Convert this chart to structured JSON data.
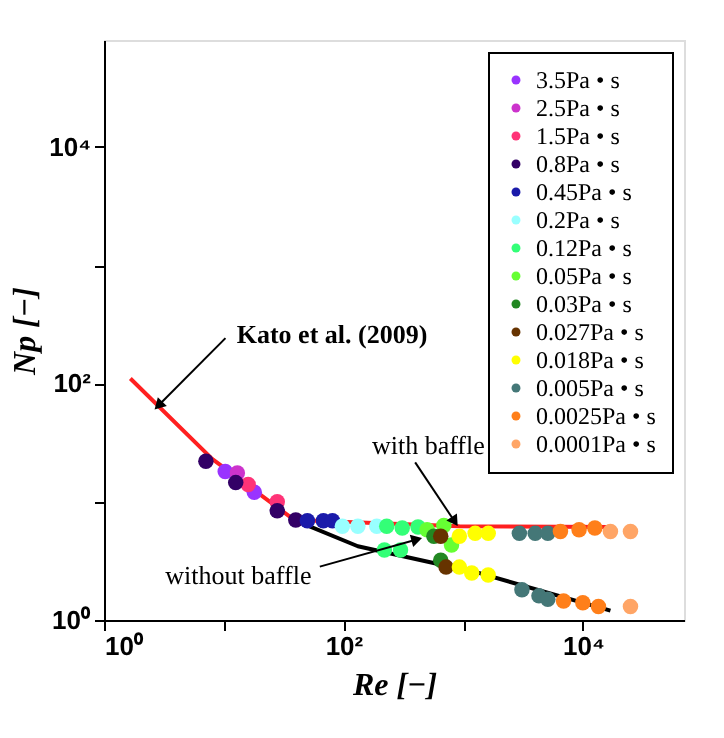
{
  "chart_data": {
    "type": "scatter",
    "xlabel": "Re [−]",
    "ylabel": "Np [−]",
    "log": "xy",
    "grid": false,
    "legend": "top right",
    "marker": "circle",
    "xlim": [
      1,
      70000
    ],
    "ylim": [
      1,
      80000
    ],
    "xticks": [
      {
        "value": 1,
        "label": "10⁰"
      },
      {
        "value": 10,
        "label": null
      },
      {
        "value": 100,
        "label": "10²"
      },
      {
        "value": 1000,
        "label": null
      },
      {
        "value": 10000,
        "label": "10⁴"
      }
    ],
    "yticks": [
      {
        "value": 1,
        "label": "10⁰"
      },
      {
        "value": 10,
        "label": null
      },
      {
        "value": 100,
        "label": "10²"
      },
      {
        "value": 1000,
        "label": null
      },
      {
        "value": 10000,
        "label": "10⁴"
      }
    ],
    "series": [
      {
        "type": "line",
        "marker": "none",
        "color": "#ff2020",
        "x": [
          1.66,
          8,
          39,
          930,
          17000
        ],
        "values": [
          110,
          23,
          7,
          6.2,
          6.1
        ]
      },
      {
        "type": "line",
        "marker": "none",
        "color": "#000000",
        "x": [
          39,
          132,
          1350,
          17000
        ],
        "values": [
          7,
          4.2,
          2.5,
          1.2
        ]
      },
      {
        "name": "3.5Pa • s",
        "color": "#9933ff",
        "x": [
          10.3,
          18
        ],
        "values": [
          18,
          12
        ]
      },
      {
        "name": "2.5Pa • s",
        "color": "#cc33cc",
        "x": [
          13
        ],
        "values": [
          17.5
        ]
      },
      {
        "name": "1.5Pa • s",
        "color": "#ff3377",
        "x": [
          16,
          28
        ],
        "values": [
          14,
          10
        ]
      },
      {
        "name": "0.8Pa • s",
        "color": "#330066",
        "x": [
          7.1,
          12.6,
          28,
          40
        ],
        "values": [
          22,
          14.5,
          8.4,
          7
        ]
      },
      {
        "name": "0.45Pa • s",
        "color": "#1a1aaa",
        "x": [
          50,
          68,
          81
        ],
        "values": [
          6.9,
          6.9,
          6.9
        ]
      },
      {
        "name": "0.2Pa • s",
        "color": "#99ffff",
        "x": [
          98,
          132,
          190
        ],
        "values": [
          6.2,
          6.2,
          6.2
        ]
      },
      {
        "name": "0.12Pa • s",
        "color": "#33ff77",
        "x": [
          230,
          310,
          420,
          220,
          300
        ],
        "values": [
          6.2,
          6.0,
          6.1,
          3.9,
          3.9
        ]
      },
      {
        "name": "0.05Pa • s",
        "color": "#66ff33",
        "x": [
          500,
          690,
          800
        ],
        "values": [
          5.8,
          6.3,
          4.3
        ]
      },
      {
        "name": "0.03Pa • s",
        "color": "#228822",
        "x": [
          570,
          650
        ],
        "values": [
          5.1,
          3.2
        ]
      },
      {
        "name": "0.027Pa • s",
        "color": "#663300",
        "x": [
          650,
          720
        ],
        "values": [
          5.1,
          2.8
        ]
      },
      {
        "name": "0.018Pa • s",
        "color": "#ffff00",
        "x": [
          930,
          1260,
          1620,
          930,
          1180,
          1620
        ],
        "values": [
          5.1,
          5.4,
          5.4,
          2.8,
          2.5,
          2.4
        ]
      },
      {
        "name": "0.005Pa • s",
        "color": "#447777",
        "x": [
          2950,
          4000,
          5100,
          3100,
          4300,
          5100
        ],
        "values": [
          5.4,
          5.4,
          5.4,
          1.8,
          1.6,
          1.5
        ]
      },
      {
        "name": "0.0025Pa • s",
        "color": "#ff7f1a",
        "x": [
          6500,
          9300,
          12600,
          6900,
          10000,
          13500
        ],
        "values": [
          5.6,
          5.8,
          6.0,
          1.45,
          1.4,
          1.3
        ]
      },
      {
        "name": "0.0001Pa • s",
        "color": "#ffa566",
        "x": [
          17000,
          25000,
          25000
        ],
        "values": [
          5.6,
          5.6,
          1.3
        ]
      }
    ],
    "annotations": [
      {
        "text": "Kato et al. (2009)",
        "x": 2.85,
        "y": 65
      },
      {
        "text": "with baffle",
        "x": 850,
        "y": 6.8
      },
      {
        "text": "without baffle",
        "x": 410,
        "y": 4.8
      }
    ]
  }
}
